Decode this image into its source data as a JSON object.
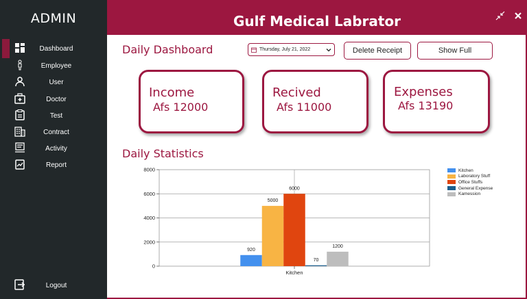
{
  "sidebar": {
    "brand": "ADMIN",
    "items": [
      {
        "label": "Dashboard",
        "icon": "dashboard-icon",
        "active": true
      },
      {
        "label": "Employee",
        "icon": "person-icon"
      },
      {
        "label": "User",
        "icon": "user-icon"
      },
      {
        "label": "Doctor",
        "icon": "medical-kit-icon"
      },
      {
        "label": "Test",
        "icon": "clipboard-icon"
      },
      {
        "label": "Contract",
        "icon": "building-icon"
      },
      {
        "label": "Activity",
        "icon": "activity-icon"
      },
      {
        "label": "Report",
        "icon": "report-icon"
      }
    ],
    "logout": {
      "label": "Logout",
      "icon": "logout-icon"
    }
  },
  "header": {
    "title": "Gulf Medical Labrator",
    "collapse_icon": "collapse-arrows-icon",
    "close_icon": "close-icon"
  },
  "toolbar": {
    "heading": "Daily Dashboard",
    "date_value": "Thursday, July 21, 2022",
    "delete_label": "Delete Receipt",
    "show_full_label": "Show Full"
  },
  "cards": [
    {
      "title": "Income",
      "value": "Afs 12000"
    },
    {
      "title": "Recived",
      "value": "Afs 11000"
    },
    {
      "title": "Expenses",
      "value": "Afs 13190"
    }
  ],
  "stats": {
    "heading": "Daily Statistics"
  },
  "colors": {
    "accent": "#9c1740",
    "sidebar": "#22282a"
  },
  "chart_data": {
    "type": "bar",
    "categories": [
      "Kitchen"
    ],
    "series": [
      {
        "name": "Kitchen",
        "values": [
          920
        ],
        "color": "#4390ee"
      },
      {
        "name": "Laboratory Stuff",
        "values": [
          5000
        ],
        "color": "#f8b444"
      },
      {
        "name": "Office Stuffs",
        "values": [
          6000
        ],
        "color": "#e0450f"
      },
      {
        "name": "General Expense",
        "values": [
          70
        ],
        "color": "#1c5f8d"
      },
      {
        "name": "Kamession",
        "values": [
          1200
        ],
        "color": "#bdbdbd"
      }
    ],
    "ylim": [
      0,
      8000
    ],
    "yticks": [
      0,
      2000,
      4000,
      6000,
      8000
    ],
    "ytick_labels": [
      "0",
      "2000",
      "4000",
      "6000",
      "8000"
    ],
    "grid": true,
    "legend": "right",
    "title": "",
    "xlabel": "",
    "ylabel": ""
  }
}
